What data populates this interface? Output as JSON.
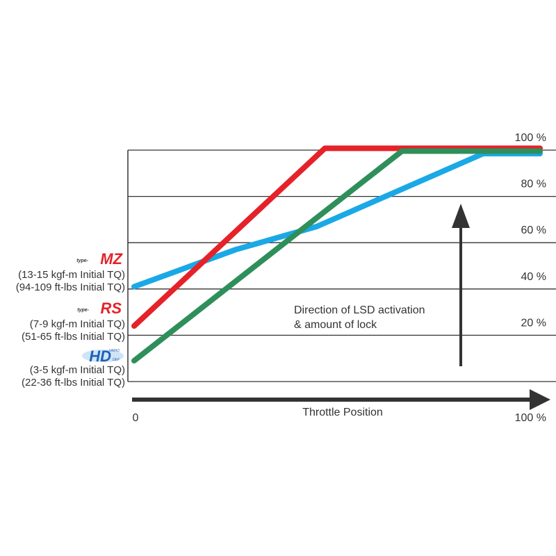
{
  "chart_data": {
    "type": "line",
    "xlabel": "Throttle Position",
    "x_ticks": [
      "0",
      "100 %"
    ],
    "y_ticks": [
      "20 %",
      "40 %",
      "60 %",
      "80 %",
      "100 %"
    ],
    "xlim": [
      0,
      100
    ],
    "ylim": [
      0,
      100
    ],
    "grid": true,
    "annotation": [
      "Direction of LSD activation",
      "& amount of lock"
    ],
    "series": [
      {
        "logo": "type-MZ",
        "lines": [
          "(13-15 kgf-m Initial TQ)",
          "(94-109 ft-lbs Initial TQ)"
        ],
        "color": "#1aa9e6",
        "points": [
          [
            0,
            41
          ],
          [
            25,
            57
          ],
          [
            45,
            67
          ],
          [
            86,
            98.5
          ],
          [
            100,
            98.5
          ]
        ]
      },
      {
        "logo": "type-RS",
        "lines": [
          "(7-9 kgf-m Initial TQ)",
          "(51-65 ft-lbs Initial TQ)"
        ],
        "color": "#e52229",
        "points": [
          [
            0,
            24
          ],
          [
            47,
            100.8
          ],
          [
            100,
            100.8
          ]
        ]
      },
      {
        "logo": "HD VARIO DEF",
        "lines": [
          "(3-5 kgf-m Initial TQ)",
          "(22-36 ft-lbs Initial TQ)"
        ],
        "color": "#2f8f5a",
        "points": [
          [
            0,
            9
          ],
          [
            66,
            99.6
          ],
          [
            100,
            99.6
          ]
        ]
      }
    ]
  }
}
